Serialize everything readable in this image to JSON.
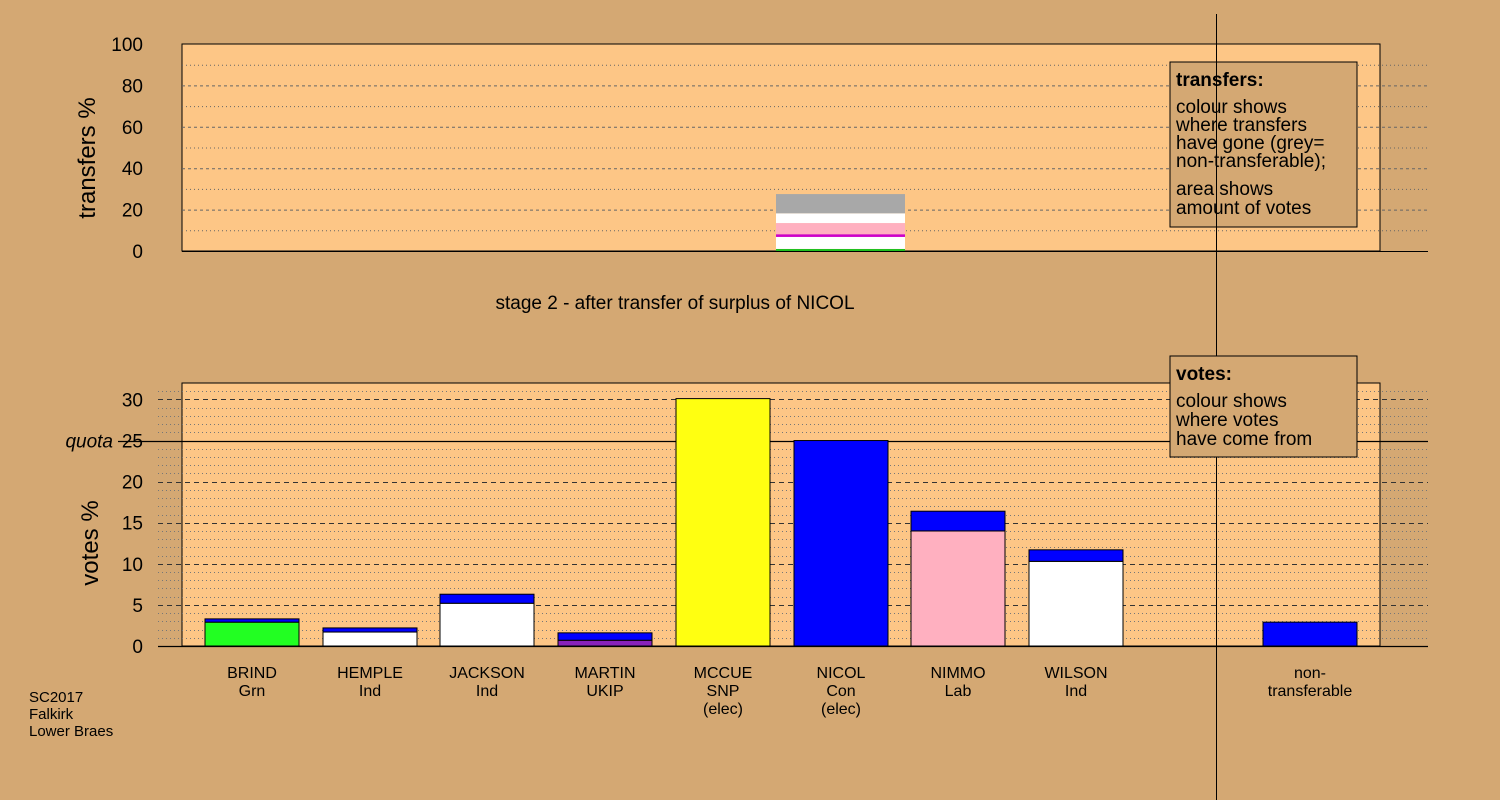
{
  "chart_data": [
    {
      "type": "bar",
      "chart_id": "transfers",
      "ylabel": "transfers %",
      "ylim": [
        0,
        100
      ],
      "yticks": [
        0,
        20,
        40,
        60,
        80,
        100
      ],
      "grid": true,
      "source_candidate": "NICOL",
      "stack_colors": [
        "#20c020",
        "#ffffff",
        "#cc00cc",
        "#ffb0c0",
        "#ffffff",
        "#a8a8a8"
      ],
      "stack_values": [
        1.0,
        5.8,
        1.3,
        5.4,
        4.7,
        9.3
      ],
      "legend": {
        "title": "transfers:",
        "lines": [
          "colour shows",
          "where transfers",
          "have gone (grey=",
          "non-transferable);"
        ],
        "lines2": [
          "area shows",
          "amount of votes"
        ]
      }
    },
    {
      "type": "bar",
      "chart_id": "votes",
      "stage_label": "stage 2 - after transfer of surplus of NICOL",
      "ylabel": "votes %",
      "ylim": [
        0,
        32
      ],
      "yticks": [
        0,
        5,
        10,
        15,
        20,
        25,
        30
      ],
      "quota": 25,
      "quota_label": "quota",
      "quota_tick_label": "25",
      "grid": true,
      "categories": [
        {
          "name": "BRIND",
          "party": "Grn",
          "note": "",
          "base": 2.9,
          "base_color": "#22ff22",
          "transfer": 0.4
        },
        {
          "name": "HEMPLE",
          "party": "Ind",
          "note": "",
          "base": 1.7,
          "base_color": "#ffffff",
          "transfer": 0.5
        },
        {
          "name": "JACKSON",
          "party": "Ind",
          "note": "",
          "base": 5.2,
          "base_color": "#ffffff",
          "transfer": 1.1
        },
        {
          "name": "MARTIN",
          "party": "UKIP",
          "note": "",
          "base": 0.7,
          "base_color": "#8822bb",
          "transfer": 0.9
        },
        {
          "name": "MCCUE",
          "party": "SNP",
          "note": "(elec)",
          "base": 30.1,
          "base_color": "#ffff11",
          "transfer": 0
        },
        {
          "name": "NICOL",
          "party": "Con",
          "note": "(elec)",
          "base": 25.0,
          "base_color": "#0000ff",
          "transfer": 0
        },
        {
          "name": "NIMMO",
          "party": "Lab",
          "note": "",
          "base": 14.0,
          "base_color": "#ffb0c0",
          "transfer": 2.4
        },
        {
          "name": "WILSON",
          "party": "Ind",
          "note": "",
          "base": 10.3,
          "base_color": "#ffffff",
          "transfer": 1.4
        }
      ],
      "non_transferable": {
        "label_line1": "non-",
        "label_line2": "transferable",
        "value": 2.9
      },
      "transfer_color": "#0000ff",
      "legend": {
        "title": "votes:",
        "lines": [
          "colour shows",
          "where votes",
          "have come from"
        ]
      }
    }
  ],
  "footer": {
    "lines": [
      "SC2017",
      "Falkirk",
      "Lower Braes"
    ]
  },
  "colors": {
    "background": "#d4a873",
    "plot_bg": "#fdc686",
    "legend_bg": "#d4a873"
  }
}
